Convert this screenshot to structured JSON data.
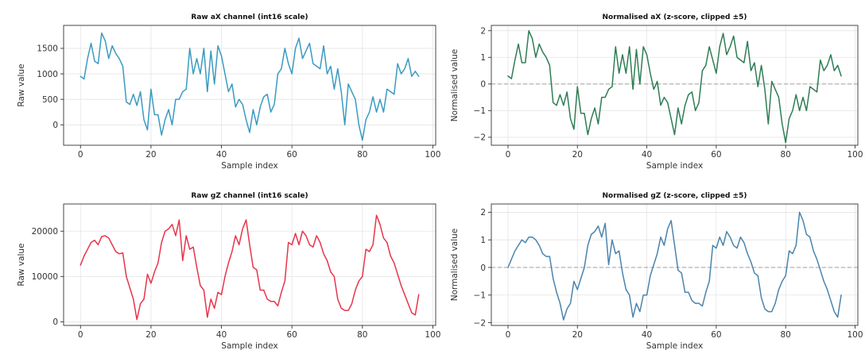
{
  "chart_data": [
    {
      "type": "line",
      "title": "Raw aX channel (int16 scale)",
      "xlabel": "Sample index",
      "ylabel": "Raw value",
      "xlim": [
        -4.8,
        100.8
      ],
      "ylim": [
        -400,
        1950
      ],
      "xticks": [
        0,
        20,
        40,
        60,
        80,
        100
      ],
      "yticks": [
        0,
        500,
        1000,
        1500
      ],
      "grid": true,
      "color": "#3a9ac2",
      "series": [
        {
          "x": [
            0,
            1,
            2,
            3,
            4,
            5,
            6,
            7,
            8,
            9,
            10,
            11,
            12,
            13,
            14,
            15,
            16,
            17,
            18,
            19,
            20,
            21,
            22,
            23,
            24,
            25,
            26,
            27,
            28,
            29,
            30,
            31,
            32,
            33,
            34,
            35,
            36,
            37,
            38,
            39,
            40,
            41,
            42,
            43,
            44,
            45,
            46,
            47,
            48,
            49,
            50,
            51,
            52,
            53,
            54,
            55,
            56,
            57,
            58,
            59,
            60,
            61,
            62,
            63,
            64,
            65,
            66,
            67,
            68,
            69,
            70,
            71,
            72,
            73,
            74,
            75,
            76,
            77,
            78,
            79,
            80,
            81,
            82,
            83,
            84,
            85,
            86,
            87,
            88,
            89,
            90,
            91,
            92,
            93,
            94,
            95,
            96
          ],
          "values": [
            950,
            900,
            1300,
            1600,
            1250,
            1200,
            1800,
            1650,
            1300,
            1550,
            1400,
            1300,
            1150,
            450,
            400,
            600,
            380,
            650,
            100,
            -100,
            700,
            200,
            200,
            -200,
            100,
            300,
            0,
            500,
            500,
            650,
            700,
            1500,
            1000,
            1300,
            1000,
            1500,
            650,
            1450,
            800,
            1550,
            1350,
            1000,
            650,
            800,
            350,
            500,
            400,
            100,
            -150,
            300,
            0,
            350,
            550,
            600,
            250,
            400,
            1000,
            1100,
            1500,
            1200,
            1000,
            1500,
            1700,
            1300,
            1450,
            1600,
            1200,
            1150,
            1100,
            1550,
            1000,
            1150,
            700,
            1100,
            650,
            0,
            800,
            650,
            500,
            0,
            -300,
            100,
            250,
            550,
            250,
            500,
            250,
            700,
            650,
            600,
            1200,
            1000,
            1100,
            1300,
            950,
            1050,
            950
          ]
        }
      ]
    },
    {
      "type": "line",
      "title": "Normalised aX (z-score, clipped ±5)",
      "xlabel": "Sample index",
      "ylabel": "Normalised value",
      "xlim": [
        -4.8,
        100.8
      ],
      "ylim": [
        -2.3,
        2.2
      ],
      "xticks": [
        0,
        20,
        40,
        60,
        80,
        100
      ],
      "yticks": [
        -2,
        -1,
        0,
        1,
        2
      ],
      "zero_line": true,
      "grid": true,
      "color": "#2e7d55",
      "series": [
        {
          "x": [
            0,
            1,
            2,
            3,
            4,
            5,
            6,
            7,
            8,
            9,
            10,
            11,
            12,
            13,
            14,
            15,
            16,
            17,
            18,
            19,
            20,
            21,
            22,
            23,
            24,
            25,
            26,
            27,
            28,
            29,
            30,
            31,
            32,
            33,
            34,
            35,
            36,
            37,
            38,
            39,
            40,
            41,
            42,
            43,
            44,
            45,
            46,
            47,
            48,
            49,
            50,
            51,
            52,
            53,
            54,
            55,
            56,
            57,
            58,
            59,
            60,
            61,
            62,
            63,
            64,
            65,
            66,
            67,
            68,
            69,
            70,
            71,
            72,
            73,
            74,
            75,
            76,
            77,
            78,
            79,
            80,
            81,
            82,
            83,
            84,
            85,
            86,
            87,
            88,
            89,
            90,
            91,
            92,
            93,
            94,
            95,
            96
          ],
          "values": [
            0.3,
            0.2,
            0.9,
            1.5,
            0.8,
            0.8,
            2.0,
            1.7,
            1.0,
            1.5,
            1.2,
            1.0,
            0.7,
            -0.7,
            -0.8,
            -0.4,
            -0.8,
            -0.3,
            -1.3,
            -1.7,
            -0.1,
            -1.1,
            -1.1,
            -1.9,
            -1.3,
            -0.9,
            -1.5,
            -0.5,
            -0.5,
            -0.2,
            -0.1,
            1.4,
            0.4,
            1.1,
            0.4,
            1.4,
            -0.2,
            1.3,
            0.0,
            1.4,
            1.1,
            0.4,
            -0.2,
            0.1,
            -0.8,
            -0.5,
            -0.7,
            -1.3,
            -1.9,
            -0.9,
            -1.5,
            -0.8,
            -0.4,
            -0.3,
            -1.0,
            -0.7,
            0.5,
            0.7,
            1.4,
            0.9,
            0.4,
            1.4,
            1.9,
            1.1,
            1.4,
            1.8,
            1.0,
            0.9,
            0.8,
            1.6,
            0.5,
            0.8,
            -0.1,
            0.7,
            -0.2,
            -1.5,
            0.1,
            -0.2,
            -0.5,
            -1.5,
            -2.2,
            -1.3,
            -1.0,
            -0.4,
            -1.0,
            -0.5,
            -1.0,
            -0.1,
            -0.2,
            -0.3,
            0.9,
            0.5,
            0.7,
            1.1,
            0.5,
            0.7,
            0.3
          ]
        }
      ]
    },
    {
      "type": "line",
      "title": "Raw gZ channel (int16 scale)",
      "xlabel": "Sample index",
      "ylabel": "Raw value",
      "xlim": [
        -4.8,
        100.8
      ],
      "ylim": [
        -800,
        26000
      ],
      "xticks": [
        0,
        20,
        40,
        60,
        80,
        100
      ],
      "yticks": [
        0,
        10000,
        20000
      ],
      "grid": true,
      "color": "#e8344a",
      "series": [
        {
          "x": [
            0,
            1,
            2,
            3,
            4,
            5,
            6,
            7,
            8,
            9,
            10,
            11,
            12,
            13,
            14,
            15,
            16,
            17,
            18,
            19,
            20,
            21,
            22,
            23,
            24,
            25,
            26,
            27,
            28,
            29,
            30,
            31,
            32,
            33,
            34,
            35,
            36,
            37,
            38,
            39,
            40,
            41,
            42,
            43,
            44,
            45,
            46,
            47,
            48,
            49,
            50,
            51,
            52,
            53,
            54,
            55,
            56,
            57,
            58,
            59,
            60,
            61,
            62,
            63,
            64,
            65,
            66,
            67,
            68,
            69,
            70,
            71,
            72,
            73,
            74,
            75,
            76,
            77,
            78,
            79,
            80,
            81,
            82,
            83,
            84,
            85,
            86,
            87,
            88,
            89,
            90,
            91,
            92,
            93,
            94,
            95,
            96
          ],
          "values": [
            12500,
            14500,
            16000,
            17500,
            18000,
            17000,
            18800,
            19000,
            18500,
            17000,
            15500,
            15000,
            15200,
            10000,
            7500,
            5000,
            500,
            4000,
            5000,
            10500,
            8500,
            11000,
            13000,
            17500,
            20000,
            20500,
            21500,
            19000,
            22500,
            13500,
            19000,
            16000,
            16500,
            12000,
            8000,
            7000,
            1000,
            5000,
            3000,
            6500,
            6000,
            10000,
            13000,
            15500,
            19000,
            17000,
            20500,
            22500,
            17000,
            12000,
            11500,
            7000,
            7000,
            5000,
            4500,
            4500,
            3500,
            6500,
            9000,
            17500,
            17000,
            19500,
            17000,
            20000,
            19000,
            17000,
            16500,
            19000,
            17500,
            15000,
            13500,
            11000,
            10000,
            5000,
            3000,
            2500,
            2500,
            4000,
            7000,
            9000,
            10000,
            16000,
            15500,
            17000,
            23500,
            21500,
            18500,
            17500,
            14500,
            13000,
            10500,
            8000,
            6000,
            4000,
            2000,
            1500,
            6000
          ]
        }
      ]
    },
    {
      "type": "line",
      "title": "Normalised gZ (z-score, clipped ±5)",
      "xlabel": "Sample index",
      "ylabel": "Normalised value",
      "xlim": [
        -4.8,
        100.8
      ],
      "ylim": [
        -2.1,
        2.3
      ],
      "xticks": [
        0,
        20,
        40,
        60,
        80,
        100
      ],
      "yticks": [
        -2,
        -1,
        0,
        1,
        2
      ],
      "zero_line": true,
      "grid": true,
      "color": "#4a84ad",
      "series": [
        {
          "x": [
            0,
            1,
            2,
            3,
            4,
            5,
            6,
            7,
            8,
            9,
            10,
            11,
            12,
            13,
            14,
            15,
            16,
            17,
            18,
            19,
            20,
            21,
            22,
            23,
            24,
            25,
            26,
            27,
            28,
            29,
            30,
            31,
            32,
            33,
            34,
            35,
            36,
            37,
            38,
            39,
            40,
            41,
            42,
            43,
            44,
            45,
            46,
            47,
            48,
            49,
            50,
            51,
            52,
            53,
            54,
            55,
            56,
            57,
            58,
            59,
            60,
            61,
            62,
            63,
            64,
            65,
            66,
            67,
            68,
            69,
            70,
            71,
            72,
            73,
            74,
            75,
            76,
            77,
            78,
            79,
            80,
            81,
            82,
            83,
            84,
            85,
            86,
            87,
            88,
            89,
            90,
            91,
            92,
            93,
            94,
            95,
            96
          ],
          "values": [
            0.0,
            0.3,
            0.6,
            0.8,
            1.0,
            0.9,
            1.1,
            1.1,
            1.0,
            0.8,
            0.5,
            0.4,
            0.4,
            -0.4,
            -0.9,
            -1.3,
            -1.9,
            -1.5,
            -1.3,
            -0.5,
            -0.8,
            -0.4,
            0.0,
            0.8,
            1.2,
            1.3,
            1.5,
            1.1,
            1.6,
            0.1,
            1.0,
            0.5,
            0.6,
            -0.2,
            -0.8,
            -1.0,
            -1.8,
            -1.3,
            -1.6,
            -1.0,
            -1.0,
            -0.3,
            0.1,
            0.5,
            1.1,
            0.8,
            1.4,
            1.7,
            0.8,
            -0.1,
            -0.2,
            -0.9,
            -0.9,
            -1.2,
            -1.3,
            -1.3,
            -1.4,
            -0.9,
            -0.5,
            0.8,
            0.7,
            1.1,
            0.8,
            1.3,
            1.1,
            0.8,
            0.7,
            1.1,
            0.9,
            0.5,
            0.2,
            -0.2,
            -0.3,
            -1.1,
            -1.5,
            -1.6,
            -1.6,
            -1.3,
            -0.8,
            -0.5,
            -0.3,
            0.6,
            0.5,
            0.8,
            2.0,
            1.7,
            1.2,
            1.1,
            0.6,
            0.3,
            -0.1,
            -0.5,
            -0.8,
            -1.2,
            -1.6,
            -1.8,
            -1.0
          ]
        }
      ]
    }
  ]
}
